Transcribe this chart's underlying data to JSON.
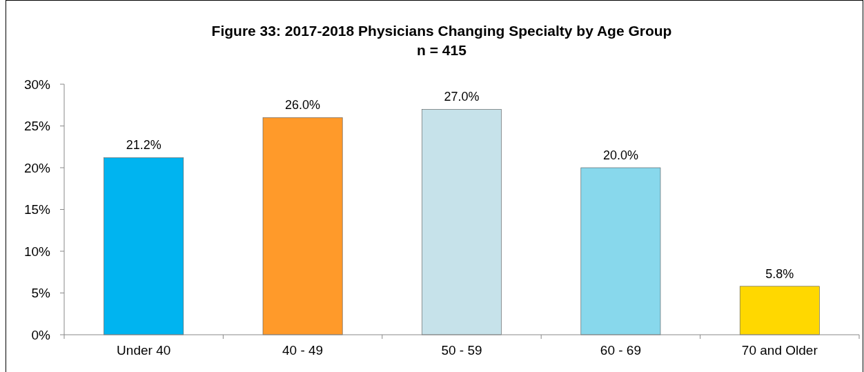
{
  "chart_data": {
    "type": "bar",
    "title": "Figure 33: 2017-2018 Physicians Changing Specialty by Age Group",
    "subtitle": "n = 415",
    "categories": [
      "Under 40",
      "40 - 49",
      "50 - 59",
      "60 - 69",
      "70 and Older"
    ],
    "values": [
      21.2,
      26.0,
      27.0,
      20.0,
      5.8
    ],
    "colors": [
      "#00b4f0",
      "#ff9a2a",
      "#c6e2ea",
      "#88d8ec",
      "#ffd800"
    ],
    "value_labels": [
      "21.2%",
      "26.0%",
      "27.0%",
      "20.0%",
      "5.8%"
    ],
    "ylim": [
      0,
      30
    ],
    "yticks": [
      {
        "value": 0,
        "label": "0%"
      },
      {
        "value": 5,
        "label": "5%"
      },
      {
        "value": 10,
        "label": "10%"
      },
      {
        "value": 15,
        "label": "15%"
      },
      {
        "value": 20,
        "label": "20%"
      },
      {
        "value": 25,
        "label": "25%"
      },
      {
        "value": 30,
        "label": "30%"
      }
    ],
    "grid": false
  }
}
